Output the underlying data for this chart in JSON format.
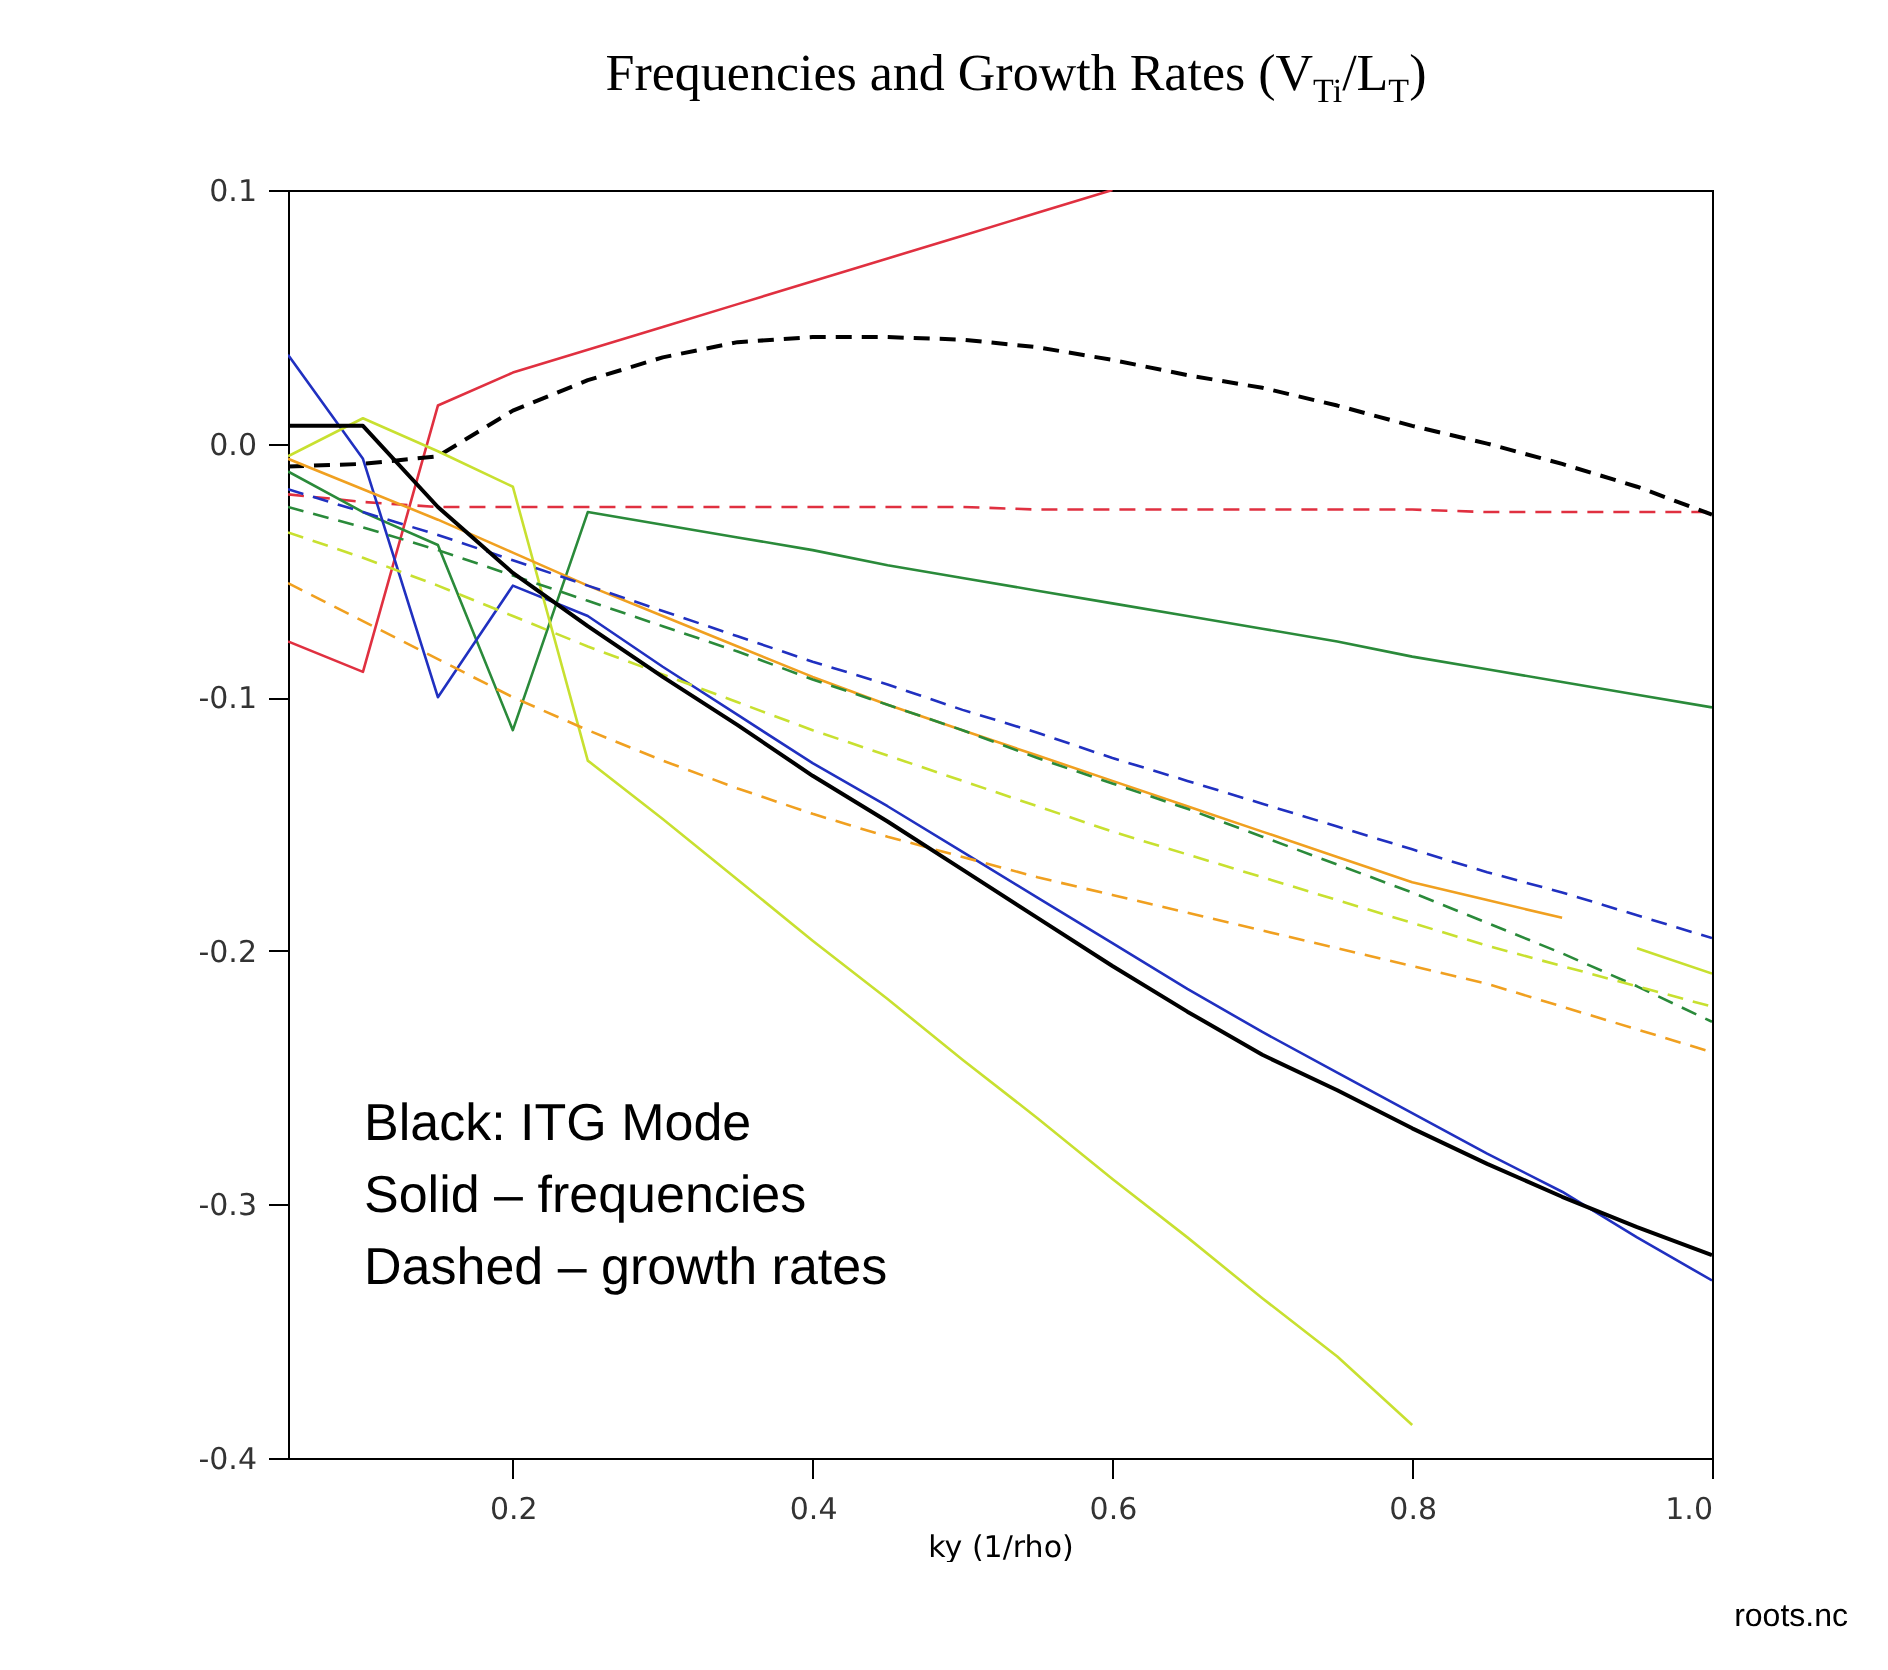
{
  "chart_data": {
    "type": "line",
    "title": "Frequencies and Growth Rates (V$_{Ti}$/L$_{T}$)",
    "xlabel": "ky (1/rho)",
    "x": [
      0.05,
      0.1,
      0.15,
      0.2,
      0.25,
      0.3,
      0.35,
      0.4,
      0.45,
      0.5,
      0.55,
      0.6,
      0.65,
      0.7,
      0.75,
      0.8,
      0.85,
      0.9,
      0.95,
      1.0
    ],
    "series": [
      {
        "color": "#e03040",
        "line_style": "solid",
        "values": [
          -0.078,
          -0.09,
          0.015,
          0.028,
          0.037,
          0.046,
          0.055,
          0.064,
          0.073,
          0.082,
          0.091,
          0.1,
          null,
          null,
          null,
          null,
          null,
          null,
          null,
          null
        ]
      },
      {
        "color": "#e03040",
        "line_style": "dashed",
        "values": [
          -0.02,
          -0.023,
          -0.025,
          -0.025,
          -0.025,
          -0.025,
          -0.025,
          -0.025,
          -0.025,
          -0.025,
          -0.026,
          -0.026,
          -0.026,
          -0.026,
          -0.026,
          -0.026,
          -0.027,
          -0.027,
          -0.027,
          -0.027
        ]
      },
      {
        "color": "#000000",
        "line_style": "dashed",
        "values": [
          -0.009,
          -0.008,
          -0.005,
          0.013,
          0.025,
          0.034,
          0.04,
          0.042,
          0.042,
          0.041,
          0.038,
          0.033,
          0.027,
          0.022,
          0.015,
          0.007,
          0.0,
          -0.008,
          -0.017,
          -0.028
        ]
      },
      {
        "color": "#2a8a3a",
        "line_style": "solid",
        "values": [
          -0.011,
          -0.027,
          -0.04,
          -0.113,
          -0.027,
          -0.032,
          -0.037,
          -0.042,
          -0.048,
          -0.053,
          -0.058,
          -0.063,
          -0.068,
          -0.073,
          -0.078,
          -0.084,
          -0.089,
          -0.094,
          -0.099,
          -0.104
        ]
      },
      {
        "color": "#2030c0",
        "line_style": "solid",
        "values": [
          0.035,
          -0.006,
          -0.1,
          -0.056,
          -0.068,
          -0.088,
          -0.107,
          -0.126,
          -0.143,
          -0.161,
          -0.179,
          -0.197,
          -0.215,
          -0.232,
          -0.248,
          -0.264,
          -0.28,
          -0.295,
          -0.313,
          -0.33
        ]
      },
      {
        "color": "#c8e030",
        "line_style": "solid",
        "values": [
          -0.005,
          0.01,
          -0.003,
          -0.017,
          -0.125,
          -0.148,
          -0.172,
          -0.196,
          -0.219,
          -0.243,
          -0.266,
          -0.29,
          -0.313,
          -0.337,
          -0.36,
          -0.387,
          null,
          null,
          -0.199,
          -0.209
        ]
      },
      {
        "color": "#f0a020",
        "line_style": "solid",
        "values": [
          -0.006,
          -0.018,
          -0.03,
          -0.043,
          -0.056,
          -0.068,
          -0.08,
          -0.092,
          -0.103,
          -0.113,
          -0.123,
          -0.133,
          -0.143,
          -0.153,
          -0.163,
          -0.173,
          -0.18,
          -0.187,
          null,
          null
        ]
      },
      {
        "color": "#2030c0",
        "line_style": "dashed",
        "values": [
          -0.018,
          -0.027,
          -0.036,
          -0.046,
          -0.056,
          -0.066,
          -0.076,
          -0.086,
          -0.095,
          -0.105,
          -0.114,
          -0.124,
          -0.133,
          -0.142,
          -0.151,
          -0.16,
          -0.169,
          -0.177,
          -0.186,
          -0.195
        ]
      },
      {
        "color": "#2a8a3a",
        "line_style": "dashed",
        "values": [
          -0.025,
          -0.033,
          -0.042,
          -0.052,
          -0.062,
          -0.072,
          -0.082,
          -0.093,
          -0.103,
          -0.113,
          -0.124,
          -0.134,
          -0.144,
          -0.155,
          -0.166,
          -0.177,
          -0.189,
          -0.201,
          -0.214,
          -0.228
        ]
      },
      {
        "color": "#c8e030",
        "line_style": "dashed",
        "values": [
          -0.035,
          -0.045,
          -0.056,
          -0.068,
          -0.08,
          -0.091,
          -0.102,
          -0.113,
          -0.123,
          -0.133,
          -0.143,
          -0.153,
          -0.162,
          -0.171,
          -0.18,
          -0.189,
          -0.198,
          -0.206,
          -0.214,
          -0.222
        ]
      },
      {
        "color": "#f0a020",
        "line_style": "dashed",
        "values": [
          -0.055,
          -0.07,
          -0.085,
          -0.1,
          -0.113,
          -0.125,
          -0.136,
          -0.146,
          -0.155,
          -0.163,
          -0.171,
          -0.178,
          -0.185,
          -0.192,
          -0.199,
          -0.206,
          -0.213,
          -0.222,
          -0.231,
          -0.24
        ]
      },
      {
        "color": "#000000",
        "line_style": "solid",
        "values": [
          0.007,
          0.007,
          -0.025,
          -0.051,
          -0.072,
          -0.092,
          -0.111,
          -0.131,
          -0.149,
          -0.168,
          -0.187,
          -0.206,
          -0.224,
          -0.241,
          -0.255,
          -0.27,
          -0.284,
          -0.297,
          -0.309,
          -0.32
        ]
      }
    ],
    "xlim": [
      0.05,
      1.0
    ],
    "xticks": [
      0.2,
      0.4,
      0.6,
      0.8,
      {
        "value": 1.0,
        "label": "1.0"
      }
    ],
    "ylim": [
      -0.4,
      0.1
    ],
    "yticks": [
      -0.4,
      -0.3,
      -0.2,
      -0.1,
      {
        "value": 0.0,
        "label": "0.0"
      },
      0.1
    ],
    "grid": false,
    "legend": false,
    "annotations": [
      "Black: ITG Mode",
      "Solid – frequencies",
      "Dashed – growth rates",
      "roots.nc"
    ]
  }
}
